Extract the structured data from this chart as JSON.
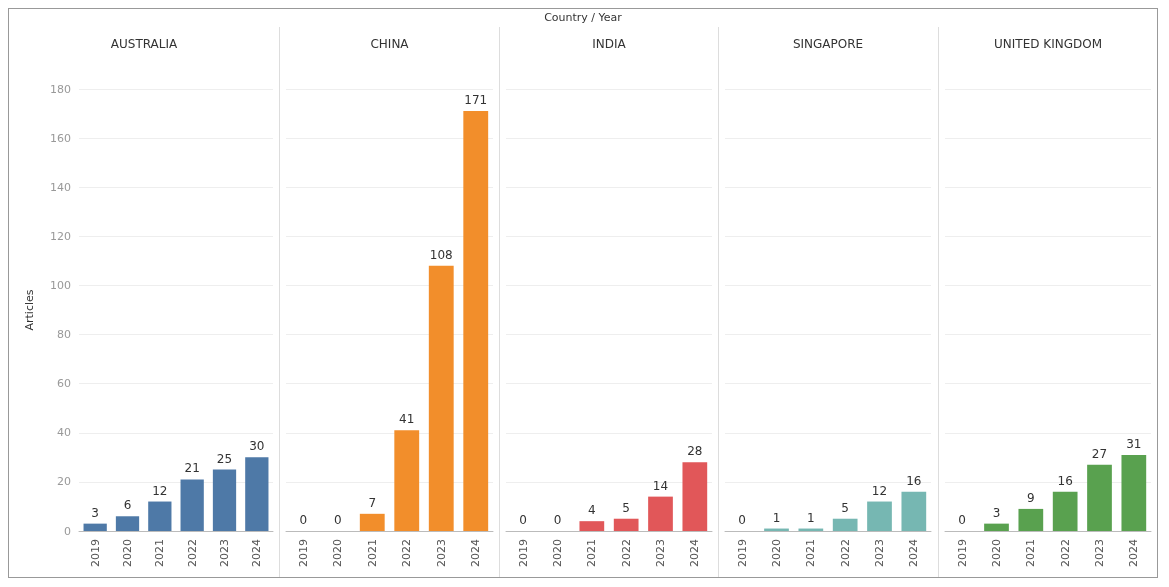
{
  "chart_data": [
    {
      "type": "bar",
      "title": "AUSTRALIA",
      "ylabel": "Articles",
      "annotations": [
        "Country / Year"
      ],
      "categories": [
        "2019",
        "2020",
        "2021",
        "2022",
        "2023",
        "2024"
      ],
      "values": [
        3,
        6,
        12,
        21,
        25,
        30
      ],
      "color": "#4e79a7",
      "ylim": [
        0,
        180
      ],
      "yticks": [
        0,
        20,
        40,
        60,
        80,
        100,
        120,
        140,
        160,
        180
      ],
      "grid": "y",
      "data_labels": true
    },
    {
      "type": "bar",
      "title": "CHINA",
      "categories": [
        "2019",
        "2020",
        "2021",
        "2022",
        "2023",
        "2024"
      ],
      "values": [
        0,
        0,
        7,
        41,
        108,
        171
      ],
      "color": "#f28e2b",
      "ylim": [
        0,
        180
      ],
      "yticks": [
        0,
        20,
        40,
        60,
        80,
        100,
        120,
        140,
        160,
        180
      ],
      "grid": "y",
      "data_labels": true,
      "tick_labels": "x"
    },
    {
      "type": "bar",
      "title": "INDIA",
      "categories": [
        "2019",
        "2020",
        "2021",
        "2022",
        "2023",
        "2024"
      ],
      "values": [
        0,
        0,
        4,
        5,
        14,
        28
      ],
      "color": "#e15759",
      "ylim": [
        0,
        180
      ],
      "yticks": [
        0,
        20,
        40,
        60,
        80,
        100,
        120,
        140,
        160,
        180
      ],
      "grid": "y",
      "data_labels": true,
      "tick_labels": "x"
    },
    {
      "type": "bar",
      "title": "SINGAPORE",
      "categories": [
        "2019",
        "2020",
        "2021",
        "2022",
        "2023",
        "2024"
      ],
      "values": [
        0,
        1,
        1,
        5,
        12,
        16
      ],
      "color": "#76b7b2",
      "ylim": [
        0,
        180
      ],
      "yticks": [
        0,
        20,
        40,
        60,
        80,
        100,
        120,
        140,
        160,
        180
      ],
      "grid": "y",
      "data_labels": true,
      "tick_labels": "x"
    },
    {
      "type": "bar",
      "title": "UNITED KINGDOM",
      "categories": [
        "2019",
        "2020",
        "2021",
        "2022",
        "2023",
        "2024"
      ],
      "values": [
        0,
        3,
        9,
        16,
        27,
        31
      ],
      "color": "#59a14f",
      "ylim": [
        0,
        180
      ],
      "yticks": [
        0,
        20,
        40,
        60,
        80,
        100,
        120,
        140,
        160,
        180
      ],
      "grid": "y",
      "data_labels": true,
      "tick_labels": "x"
    }
  ]
}
